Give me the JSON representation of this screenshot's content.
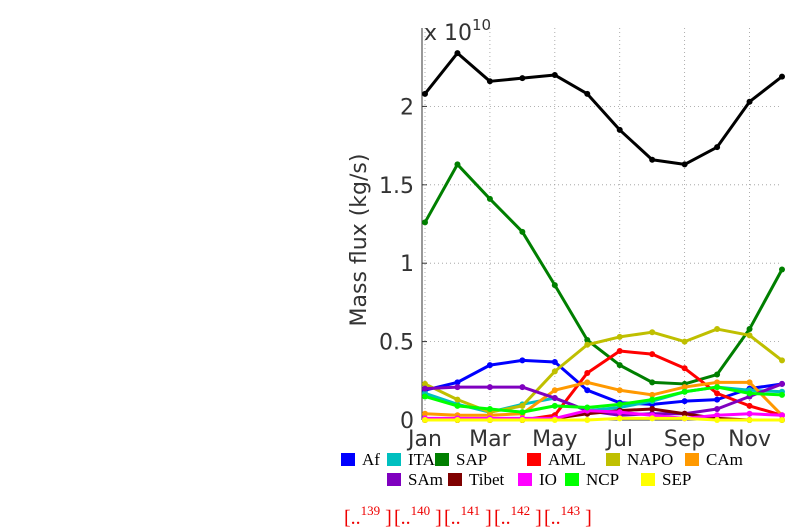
{
  "chart_data": {
    "type": "line",
    "y_label": "Mass flux (kg/s)",
    "y_multiplier": {
      "base": "x 10",
      "exponent": "10"
    },
    "categories": [
      "Jan",
      null,
      "Mar",
      null,
      "May",
      null,
      "Jul",
      null,
      "Sep",
      null,
      "Nov",
      null
    ],
    "ylim": [
      0,
      2.5
    ],
    "yticks": [
      0,
      0.5,
      1,
      1.5,
      2
    ],
    "grid": true,
    "grid_style": "dotted",
    "series": [
      {
        "name": "Af",
        "color": "#0000ff",
        "values": [
          0.19,
          0.24,
          0.35,
          0.38,
          0.37,
          0.19,
          0.11,
          0.1,
          0.12,
          0.13,
          0.2,
          0.23
        ]
      },
      {
        "name": "ITA",
        "color": "#00bfbf",
        "values": [
          0.17,
          0.1,
          0.05,
          0.1,
          0.14,
          0.06,
          0.08,
          0.12,
          0.18,
          0.21,
          0.19,
          0.18
        ]
      },
      {
        "name": "SAP",
        "color": "#007f00",
        "values": [
          1.26,
          1.63,
          1.41,
          1.2,
          0.86,
          0.51,
          0.35,
          0.24,
          0.23,
          0.29,
          0.58,
          0.96
        ]
      },
      {
        "name": "AML",
        "color": "#ff0000",
        "values": [
          0,
          0,
          0,
          0,
          0.03,
          0.3,
          0.44,
          0.42,
          0.33,
          0.17,
          0.09,
          0.03
        ]
      },
      {
        "name": "NAPO",
        "color": "#bfbf00",
        "values": [
          0.23,
          0.13,
          0.05,
          0.09,
          0.31,
          0.48,
          0.53,
          0.56,
          0.5,
          0.58,
          0.54,
          0.38
        ]
      },
      {
        "name": "CAm",
        "color": "#ff9900",
        "values": [
          0.04,
          0.03,
          0.03,
          0.04,
          0.19,
          0.24,
          0.19,
          0.16,
          0.21,
          0.24,
          0.24,
          0.03
        ]
      },
      {
        "name": "SAm",
        "color": "#7f00bf",
        "values": [
          0.2,
          0.21,
          0.21,
          0.21,
          0.14,
          0.06,
          0.03,
          0.04,
          0.04,
          0.07,
          0.15,
          0.23
        ]
      },
      {
        "name": "Tibet",
        "color": "#7f0000",
        "values": [
          0,
          0,
          0,
          0,
          0.01,
          0.04,
          0.06,
          0.07,
          0.04,
          0.01,
          0,
          0
        ]
      },
      {
        "name": "IO",
        "color": "#ff00ff",
        "values": [
          0.01,
          0.01,
          0.01,
          0.01,
          0.01,
          0.06,
          0.05,
          0.03,
          0.01,
          0.03,
          0.04,
          0.03
        ]
      },
      {
        "name": "NCP",
        "color": "#00ff00",
        "values": [
          0.15,
          0.09,
          0.07,
          0.05,
          0.09,
          0.08,
          0.1,
          0.13,
          0.18,
          0.21,
          0.17,
          0.16
        ]
      },
      {
        "name": "SEP",
        "color": "#ffff00",
        "values": [
          0,
          0,
          0,
          0,
          0,
          0,
          0.01,
          0.01,
          0.01,
          0,
          0,
          0
        ]
      },
      {
        "color": "#000000",
        "values": [
          2.08,
          2.34,
          2.16,
          2.18,
          2.2,
          2.08,
          1.85,
          1.66,
          1.63,
          1.74,
          2.03,
          2.19
        ]
      }
    ],
    "refs": [
      {
        "prefix": "[..",
        "number": "139",
        "suffix": " ]"
      },
      {
        "prefix": "[..",
        "number": "140",
        "suffix": " ]"
      },
      {
        "prefix": "[..",
        "number": "141",
        "suffix": " ]"
      },
      {
        "prefix": "[..",
        "number": "142",
        "suffix": " ]"
      },
      {
        "prefix": "[..",
        "number": "143",
        "suffix": " ]"
      }
    ]
  }
}
